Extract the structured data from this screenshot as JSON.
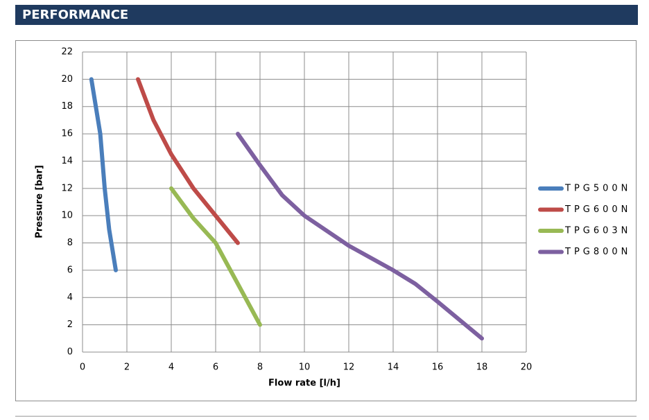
{
  "header": {
    "title": "PERFORMANCE"
  },
  "chart_data": {
    "type": "line",
    "x_label": "Flow rate [l/h]",
    "y_label": "Pressure [bar]",
    "xlim": [
      0,
      20
    ],
    "xticks": [
      0,
      2,
      4,
      6,
      8,
      10,
      12,
      14,
      16,
      18,
      20
    ],
    "ylim": [
      0,
      22
    ],
    "yticks": [
      0,
      2,
      4,
      6,
      8,
      10,
      12,
      14,
      16,
      18,
      20,
      22
    ],
    "grid": true,
    "legend": "right",
    "series": [
      {
        "name": "TPG500N",
        "color": "#4a7ebb",
        "x": [
          0.4,
          0.8,
          1.0,
          1.2,
          1.5
        ],
        "values": [
          20,
          16,
          12,
          9,
          6
        ]
      },
      {
        "name": "TPG600N",
        "color": "#be4b48",
        "x": [
          2.5,
          3.2,
          4,
          5,
          6,
          7
        ],
        "values": [
          20,
          17,
          14.5,
          12,
          10,
          8
        ]
      },
      {
        "name": "TPG603N",
        "color": "#98b954",
        "x": [
          4,
          5,
          6,
          7,
          8
        ],
        "values": [
          12,
          9.8,
          8,
          5,
          2
        ]
      },
      {
        "name": "TPG800N",
        "color": "#7d60a0",
        "x": [
          7,
          8,
          9,
          10,
          12,
          14,
          15,
          16,
          18
        ],
        "values": [
          16,
          13.7,
          11.5,
          10,
          7.8,
          6,
          5,
          3.7,
          1
        ]
      }
    ]
  }
}
